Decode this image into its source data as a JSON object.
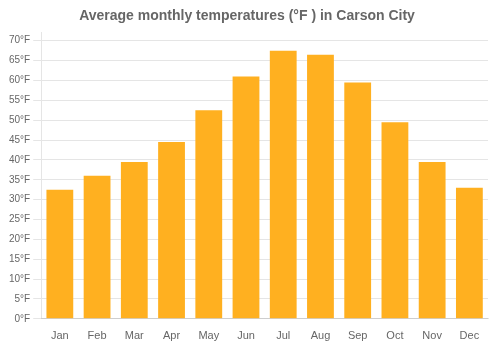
{
  "chart_data": {
    "type": "bar",
    "title": "Average monthly temperatures (°F ) in Carson City",
    "categories": [
      "Jan",
      "Feb",
      "Mar",
      "Apr",
      "May",
      "Jun",
      "Jul",
      "Aug",
      "Sep",
      "Oct",
      "Nov",
      "Dec"
    ],
    "values": [
      32.5,
      36.0,
      39.5,
      44.5,
      52.5,
      61.0,
      67.5,
      66.5,
      59.5,
      49.5,
      39.5,
      33.0
    ],
    "color": "#FFB020",
    "ylim": [
      0,
      72
    ],
    "yticks": [
      {
        "value": 0,
        "label": "0°F"
      },
      {
        "value": 5,
        "label": "5°F"
      },
      {
        "value": 10,
        "label": "10°F"
      },
      {
        "value": 15,
        "label": "15°F"
      },
      {
        "value": 20,
        "label": "20°F"
      },
      {
        "value": 25,
        "label": "25°F"
      },
      {
        "value": 30,
        "label": "30°F"
      },
      {
        "value": 35,
        "label": "35°F"
      },
      {
        "value": 40,
        "label": "40°F"
      },
      {
        "value": 45,
        "label": "45°F"
      },
      {
        "value": 50,
        "label": "50°F"
      },
      {
        "value": 55,
        "label": "55°F"
      },
      {
        "value": 60,
        "label": "60°F"
      },
      {
        "value": 65,
        "label": "65°F"
      },
      {
        "value": 70,
        "label": "70°F"
      }
    ],
    "grid": true
  }
}
